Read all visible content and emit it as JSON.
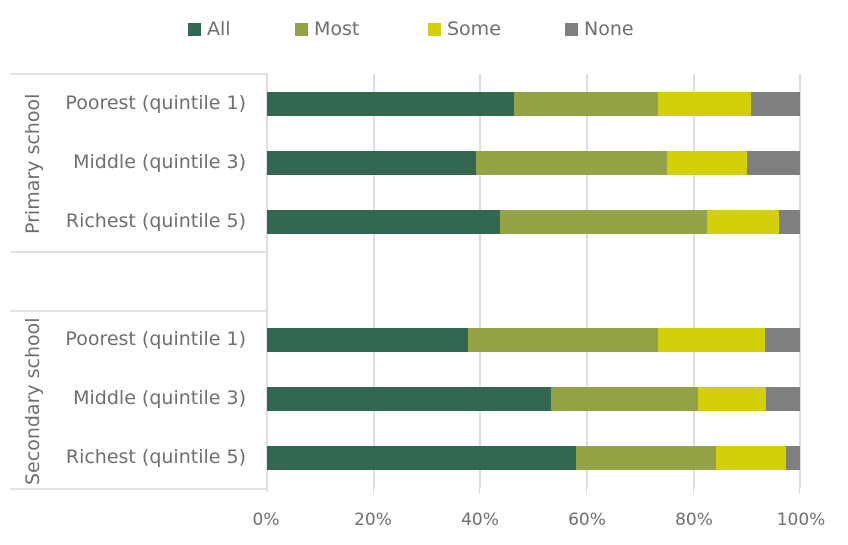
{
  "legend": [
    {
      "label": "All",
      "color": "#336750"
    },
    {
      "label": "Most",
      "color": "#93a345"
    },
    {
      "label": "Some",
      "color": "#d4cf0b"
    },
    {
      "label": "None",
      "color": "#7f7f7f"
    }
  ],
  "groups": [
    {
      "label": "Primary school",
      "rows": [
        {
          "label": "Poorest (quintile 1)",
          "values": [
            46.3,
            27.0,
            17.5,
            9.2
          ]
        },
        {
          "label": "Middle (quintile 3)",
          "values": [
            39.2,
            35.9,
            15.0,
            9.9
          ]
        },
        {
          "label": "Richest (quintile 5)",
          "values": [
            43.7,
            38.8,
            13.6,
            3.9
          ]
        }
      ]
    },
    {
      "label": "Secondary school",
      "rows": [
        {
          "label": "Poorest (quintile 1)",
          "values": [
            37.8,
            35.6,
            20.0,
            6.6
          ]
        },
        {
          "label": "Middle (quintile 3)",
          "values": [
            53.2,
            27.7,
            12.7,
            6.4
          ]
        },
        {
          "label": "Richest (quintile 5)",
          "values": [
            58.0,
            26.2,
            13.2,
            2.6
          ]
        }
      ]
    }
  ],
  "x_ticks": [
    "0%",
    "20%",
    "40%",
    "60%",
    "80%",
    "100%"
  ],
  "chart_data": {
    "type": "bar",
    "orientation": "horizontal",
    "stacked": true,
    "percent": true,
    "title": "",
    "xlabel": "",
    "ylabel": "",
    "xlim": [
      0,
      100
    ],
    "x_ticks": [
      "0%",
      "20%",
      "40%",
      "60%",
      "80%",
      "100%"
    ],
    "grid": "vertical",
    "legend_position": "top",
    "groups": [
      "Primary school",
      "Secondary school"
    ],
    "categories": [
      "Primary school | Poorest (quintile 1)",
      "Primary school | Middle (quintile 3)",
      "Primary school | Richest (quintile 5)",
      "Secondary school | Poorest (quintile 1)",
      "Secondary school | Middle (quintile 3)",
      "Secondary school | Richest (quintile 5)"
    ],
    "series": [
      {
        "name": "All",
        "color": "#336750",
        "values": [
          46.3,
          39.2,
          43.7,
          37.8,
          53.2,
          58.0
        ]
      },
      {
        "name": "Most",
        "color": "#93a345",
        "values": [
          27.0,
          35.9,
          38.8,
          35.6,
          27.7,
          26.2
        ]
      },
      {
        "name": "Some",
        "color": "#d4cf0b",
        "values": [
          17.5,
          15.0,
          13.6,
          20.0,
          12.7,
          13.2
        ]
      },
      {
        "name": "None",
        "color": "#7f7f7f",
        "values": [
          9.2,
          9.9,
          3.9,
          6.6,
          6.4,
          2.6
        ]
      }
    ]
  }
}
